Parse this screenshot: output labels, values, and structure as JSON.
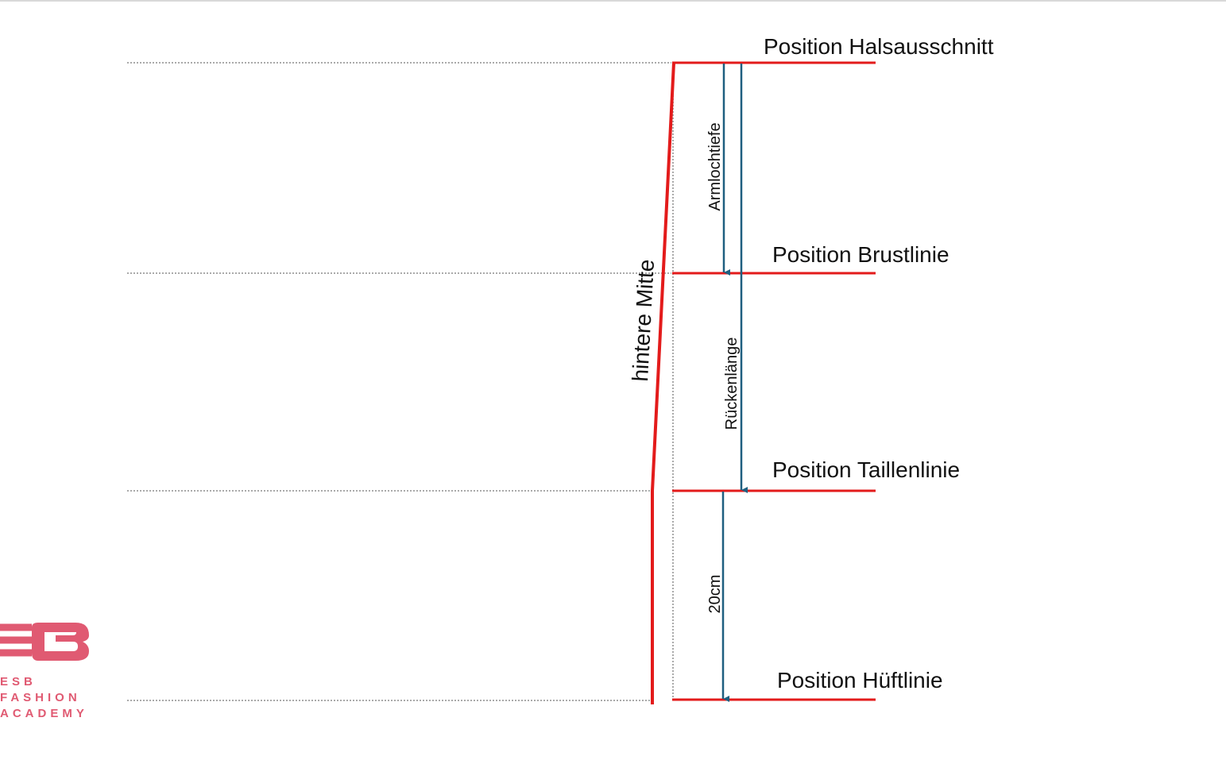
{
  "lines": [
    {
      "label": "Position Halsausschnitt"
    },
    {
      "label": "Position Brustlinie"
    },
    {
      "label": "Position Taillenlinie"
    },
    {
      "label": "Position Hüftlinie"
    }
  ],
  "measurements": [
    {
      "label": "Armlochtiefe"
    },
    {
      "label": "Rückenlänge"
    },
    {
      "label": "20cm"
    }
  ],
  "center_label": "hintere Mitte",
  "logo": {
    "lines": [
      "ESB",
      "FASHION",
      "ACADEMY"
    ]
  }
}
